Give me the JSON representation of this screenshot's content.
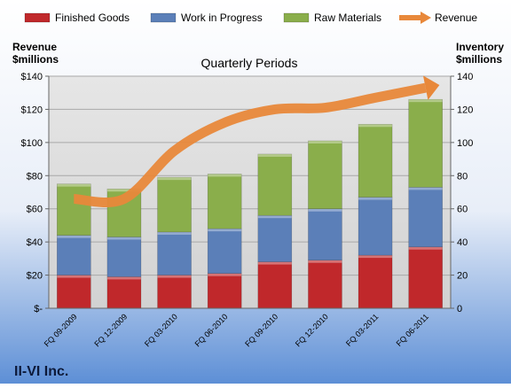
{
  "company": "II-VI Inc.",
  "chart_data": {
    "type": "bar",
    "stacked": true,
    "title": "Quarterly Periods",
    "left_axis_label": [
      "Revenue",
      "$millions"
    ],
    "right_axis_label": [
      "Inventory",
      "$millions"
    ],
    "categories": [
      "FQ 09-2009",
      "FQ 12-2009",
      "FQ 03-2010",
      "FQ 06-2010",
      "FQ 09-2010",
      "FQ 12-2010",
      "FQ 03-2011",
      "FQ 06-2011"
    ],
    "ylim": [
      0,
      140
    ],
    "yticks": [
      0,
      20,
      40,
      60,
      80,
      100,
      120,
      140
    ],
    "left_tick_labels": [
      "$-",
      "$20",
      "$40",
      "$60",
      "$80",
      "$100",
      "$120",
      "$140"
    ],
    "right_tick_labels": [
      "0",
      "20",
      "40",
      "60",
      "80",
      "100",
      "120",
      "140"
    ],
    "legend_position": "top",
    "grid": true,
    "series": [
      {
        "name": "Finished Goods",
        "color": "#c0282b",
        "values": [
          20,
          19,
          20,
          21,
          28,
          29,
          32,
          37
        ]
      },
      {
        "name": "Work in Progress",
        "color": "#5b7fb8",
        "values": [
          24,
          24,
          26,
          27,
          28,
          31,
          35,
          36
        ]
      },
      {
        "name": "Raw Materials",
        "color": "#8aae4b",
        "values": [
          31,
          29,
          33,
          33,
          37,
          41,
          44,
          53
        ]
      }
    ],
    "line_series": {
      "name": "Revenue",
      "color": "#e8883a",
      "values": [
        66,
        66,
        95,
        112,
        120,
        121,
        127,
        133
      ]
    }
  }
}
